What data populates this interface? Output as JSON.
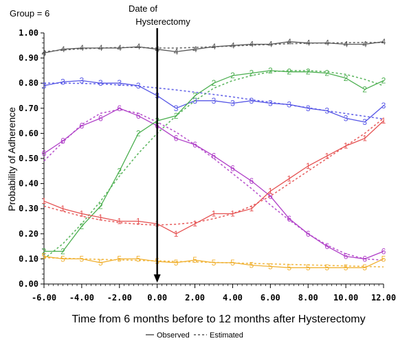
{
  "chart_data": {
    "type": "line",
    "group_label": "Group = 6",
    "annotation": "Date of\nHysterectomy",
    "annotation_x": 0,
    "xlabel": "Time from 6 months before to 12 months after Hysterectomy",
    "ylabel": "Probability of Adherence",
    "xlim": [
      -6,
      12
    ],
    "ylim": [
      0,
      1
    ],
    "x_ticks": [
      -6,
      -4,
      -2,
      0,
      2,
      4,
      6,
      8,
      10,
      12
    ],
    "x_tick_labels": [
      "-6.00",
      "-4.00",
      "-2.00",
      "0.00",
      "2.00",
      "4.00",
      "6.00",
      "8.00",
      "10.00",
      "12.00"
    ],
    "y_ticks": [
      0,
      0.1,
      0.2,
      0.3,
      0.4,
      0.5,
      0.6,
      0.7,
      0.8,
      0.9,
      1.0
    ],
    "y_tick_labels": [
      "0.00",
      "0.10",
      "0.20",
      "0.30",
      "0.40",
      "0.50",
      "0.60",
      "0.70",
      "0.80",
      "0.90",
      "1.00"
    ],
    "legend_observed": "Observed",
    "legend_estimated": "Estimated",
    "legend_position": "bottom",
    "x": [
      -6,
      -5,
      -4,
      -3,
      -2,
      -1,
      0,
      1,
      2,
      3,
      4,
      5,
      6,
      7,
      8,
      9,
      10,
      11,
      12
    ],
    "series": [
      {
        "marker": "4",
        "color": "#555555",
        "observed": [
          0.92,
          0.935,
          0.94,
          0.94,
          0.94,
          0.945,
          0.935,
          0.925,
          0.935,
          0.945,
          0.95,
          0.955,
          0.955,
          0.965,
          0.96,
          0.96,
          0.955,
          0.955,
          0.965
        ],
        "estimated": [
          0.925,
          0.932,
          0.937,
          0.94,
          0.942,
          0.942,
          0.94,
          0.94,
          0.942,
          0.945,
          0.948,
          0.951,
          0.954,
          0.957,
          0.959,
          0.96,
          0.961,
          0.962,
          0.962
        ]
      },
      {
        "marker": "3",
        "color": "#5555e6",
        "observed": [
          0.79,
          0.805,
          0.81,
          0.8,
          0.8,
          0.79,
          0.75,
          0.7,
          0.73,
          0.73,
          0.72,
          0.73,
          0.72,
          0.715,
          0.7,
          0.69,
          0.66,
          0.645,
          0.71
        ],
        "estimated": [
          0.8,
          0.8,
          0.799,
          0.797,
          0.793,
          0.788,
          0.781,
          0.773,
          0.764,
          0.755,
          0.745,
          0.734,
          0.724,
          0.713,
          0.702,
          0.69,
          0.679,
          0.668,
          0.657
        ]
      },
      {
        "marker": "6",
        "color": "#b040c8",
        "observed": [
          0.52,
          0.57,
          0.63,
          0.66,
          0.7,
          0.67,
          0.63,
          0.58,
          0.555,
          0.51,
          0.46,
          0.41,
          0.35,
          0.26,
          0.2,
          0.15,
          0.11,
          0.1,
          0.13
        ],
        "estimated": [
          0.49,
          0.565,
          0.635,
          0.68,
          0.695,
          0.68,
          0.645,
          0.605,
          0.555,
          0.5,
          0.44,
          0.38,
          0.315,
          0.255,
          0.2,
          0.155,
          0.12,
          0.1,
          0.095
        ]
      },
      {
        "marker": "2",
        "color": "#4caf50",
        "observed": [
          0.13,
          0.13,
          0.23,
          0.31,
          0.45,
          0.6,
          0.65,
          0.67,
          0.75,
          0.8,
          0.83,
          0.84,
          0.85,
          0.845,
          0.845,
          0.84,
          0.82,
          0.775,
          0.81
        ],
        "estimated": [
          0.1,
          0.16,
          0.24,
          0.33,
          0.43,
          0.52,
          0.6,
          0.67,
          0.73,
          0.78,
          0.81,
          0.83,
          0.845,
          0.85,
          0.85,
          0.845,
          0.835,
          0.815,
          0.79
        ]
      },
      {
        "marker": "1",
        "color": "#e55050",
        "observed": [
          0.33,
          0.3,
          0.28,
          0.265,
          0.25,
          0.25,
          0.24,
          0.2,
          0.24,
          0.28,
          0.28,
          0.3,
          0.37,
          0.42,
          0.47,
          0.51,
          0.55,
          0.58,
          0.65
        ],
        "estimated": [
          0.31,
          0.29,
          0.27,
          0.255,
          0.245,
          0.238,
          0.235,
          0.238,
          0.245,
          0.26,
          0.28,
          0.31,
          0.35,
          0.4,
          0.45,
          0.5,
          0.55,
          0.6,
          0.66
        ]
      },
      {
        "marker": "5",
        "color": "#f0b030",
        "observed": [
          0.11,
          0.1,
          0.1,
          0.085,
          0.1,
          0.1,
          0.09,
          0.085,
          0.095,
          0.085,
          0.085,
          0.075,
          0.07,
          0.065,
          0.065,
          0.065,
          0.065,
          0.065,
          0.1
        ],
        "estimated": [
          0.105,
          0.103,
          0.1,
          0.098,
          0.096,
          0.094,
          0.092,
          0.09,
          0.088,
          0.086,
          0.084,
          0.082,
          0.08,
          0.078,
          0.076,
          0.074,
          0.072,
          0.07,
          0.068
        ]
      }
    ]
  }
}
